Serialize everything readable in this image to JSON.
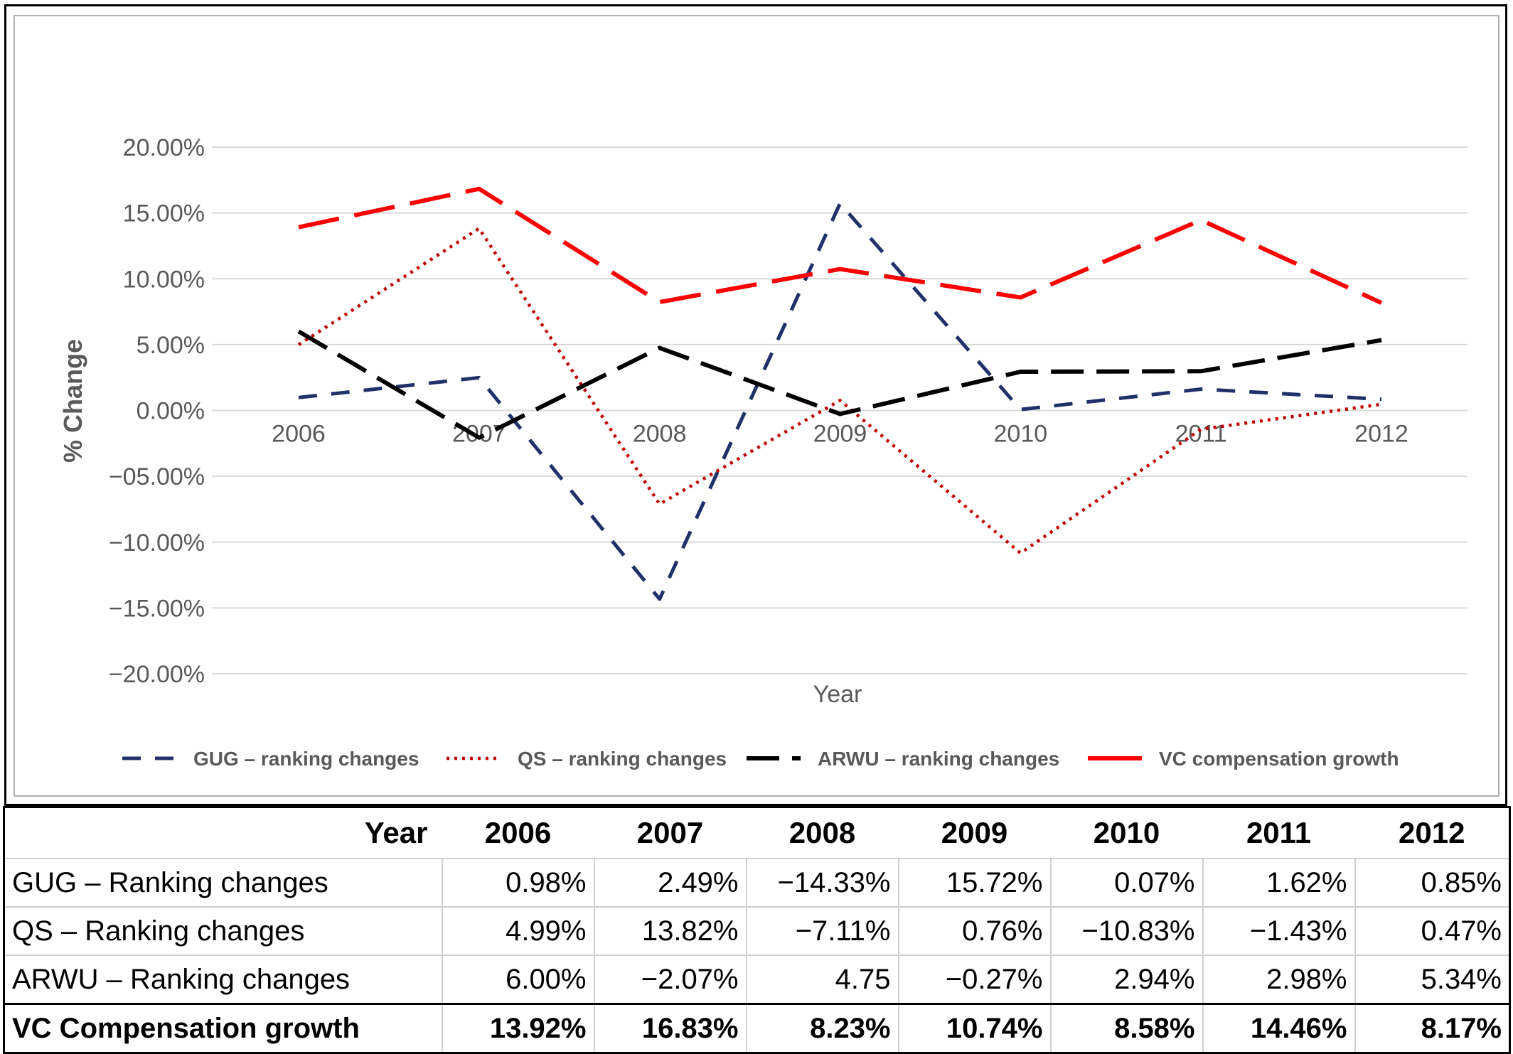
{
  "chart_data": {
    "type": "line",
    "title": "",
    "xlabel": "Year",
    "ylabel": "% Change",
    "x": [
      "2006",
      "2007",
      "2008",
      "2009",
      "2010",
      "2011",
      "2012"
    ],
    "ylim": [
      -20,
      20
    ],
    "yticks": [
      "20.00%",
      "15.00%",
      "10.00%",
      "5.00%",
      "0.00%",
      "−05.00%",
      "−10.00%",
      "−15.00%",
      "−20.00%"
    ],
    "grid": true,
    "legend_position": "bottom",
    "series": [
      {
        "name": "GUG  – ranking changes",
        "values": [
          0.98,
          2.49,
          -14.33,
          15.72,
          0.07,
          1.62,
          0.85
        ],
        "color": "#1f3168",
        "dash": "long"
      },
      {
        "name": "QS – ranking changes",
        "values": [
          4.99,
          13.82,
          -7.11,
          0.76,
          -10.83,
          -1.43,
          0.47
        ],
        "color": "#c00000",
        "dash": "dot"
      },
      {
        "name": "ARWU  – ranking changes",
        "values": [
          6.0,
          -2.07,
          4.75,
          -0.27,
          2.94,
          2.98,
          5.34
        ],
        "color": "#000000",
        "dash": "longer"
      },
      {
        "name": "VC compensation growth",
        "values": [
          13.92,
          16.83,
          8.23,
          10.74,
          8.58,
          14.46,
          8.17
        ],
        "color": "#ff0000",
        "dash": "longest"
      }
    ]
  },
  "table": {
    "header_label": "Year",
    "years": [
      "2006",
      "2007",
      "2008",
      "2009",
      "2010",
      "2011",
      "2012"
    ],
    "rows": [
      {
        "label": "GUG  – Ranking changes",
        "cells": [
          "0.98%",
          "2.49%",
          "−14.33%",
          "15.72%",
          "0.07%",
          "1.62%",
          "0.85%"
        ]
      },
      {
        "label": "QS – Ranking changes",
        "cells": [
          "4.99%",
          "13.82%",
          "−7.11%",
          "0.76%",
          "−10.83%",
          "−1.43%",
          "0.47%"
        ]
      },
      {
        "label": "ARWU  – Ranking changes",
        "cells": [
          "6.00%",
          "−2.07%",
          "4.75",
          "−0.27%",
          "2.94%",
          "2.98%",
          "5.34%"
        ]
      },
      {
        "label": "VC Compensation growth",
        "cells": [
          "13.92%",
          "16.83%",
          "8.23%",
          "10.74%",
          "8.58%",
          "14.46%",
          "8.17%"
        ]
      }
    ]
  }
}
